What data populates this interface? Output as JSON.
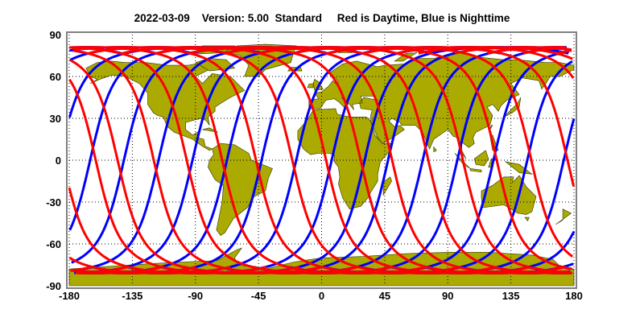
{
  "chart_data": {
    "type": "line",
    "title": "2022-03-09    Version: 5.00  Standard     Red is Daytime, Blue is Nighttime",
    "xlabel": "",
    "ylabel": "",
    "xlim": [
      -180,
      180
    ],
    "ylim": [
      -90,
      90
    ],
    "x_ticks": [
      "-180",
      "-135",
      "-90",
      "-45",
      "0",
      "45",
      "90",
      "135",
      "180"
    ],
    "y_ticks": [
      "90",
      "60",
      "30",
      "0",
      "-30",
      "-60",
      "-90"
    ],
    "grid": true,
    "background": "world map",
    "max_track_latitude": 81,
    "series": [
      {
        "color": "#FF0000",
        "meaning": "Daytime",
        "direction": "ascending",
        "equator_crossing_longitudes": [
          -161.1,
          -145.5,
          -119.7,
          -96.2,
          -70.9,
          -46.8,
          -20.9,
          3.2,
          27.9,
          50.3,
          76.1,
          100.8,
          124.9,
          149.6,
          175.4
        ]
      },
      {
        "color": "#0000FF",
        "meaning": "Nighttime",
        "direction": "descending",
        "equator_crossing_longitudes": [
          -165.1,
          -141.0,
          -116.3,
          -92.1,
          -67.5,
          -42.8,
          -18.1,
          7.2,
          30.7,
          47.4,
          72.1,
          96.8,
          122.6,
          146.7,
          172.7
        ]
      }
    ],
    "colors": {
      "land": "#AAAA00",
      "land_outline": "#333300",
      "frame": "#808080"
    }
  }
}
